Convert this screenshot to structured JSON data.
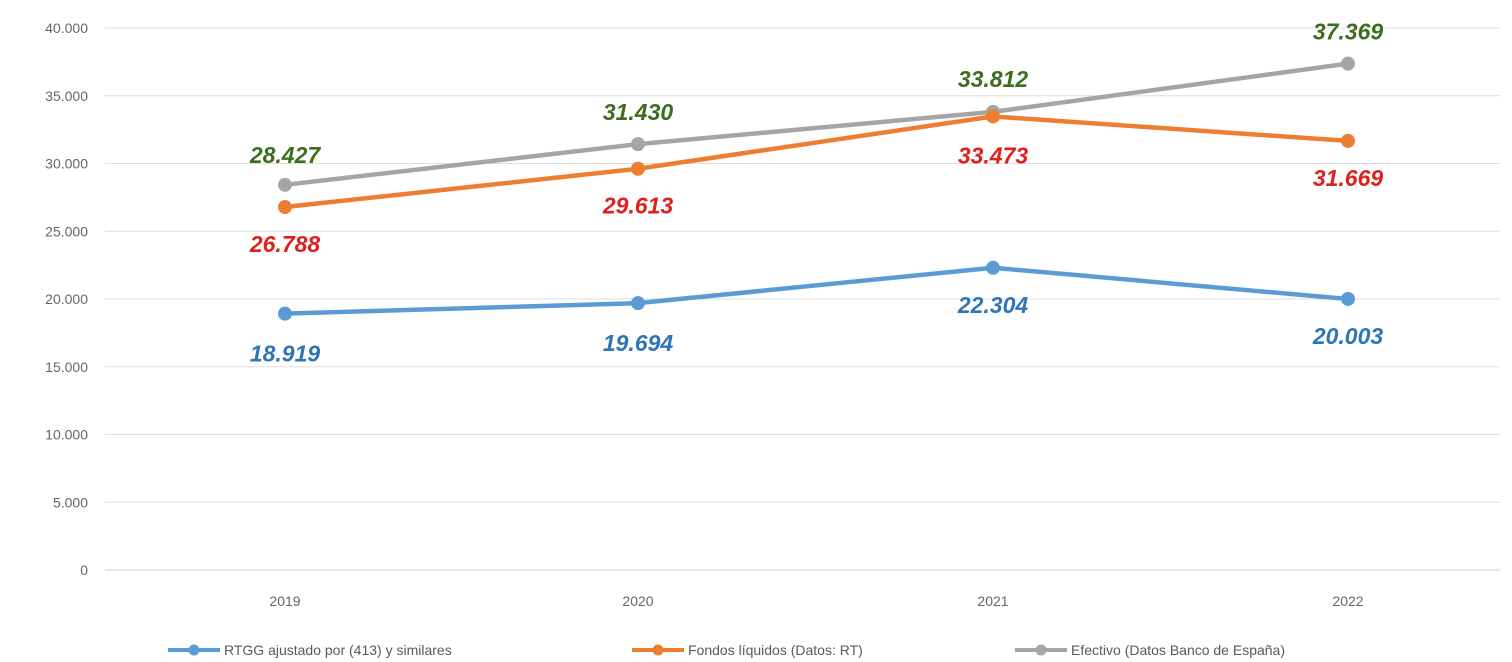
{
  "chart_data": {
    "type": "line",
    "title": "",
    "xlabel": "",
    "ylabel": "",
    "categories": [
      "2019",
      "2020",
      "2021",
      "2022"
    ],
    "ylim": [
      0,
      40000
    ],
    "yticks": [
      0,
      5000,
      10000,
      15000,
      20000,
      25000,
      30000,
      35000,
      40000
    ],
    "ytick_labels": [
      "0",
      "5.000",
      "10.000",
      "15.000",
      "20.000",
      "25.000",
      "30.000",
      "35.000",
      "40.000"
    ],
    "grid": true,
    "legend_position": "bottom",
    "series": [
      {
        "name": "RTGG ajustado por (413) y similares",
        "color": "#5b9bd5",
        "label_color": "#2e75b6",
        "values": [
          18919,
          19694,
          22304,
          20003
        ],
        "labels": [
          "18.919",
          "19.694",
          "22.304",
          "20.003"
        ]
      },
      {
        "name": "Fondos líquidos (Datos: RT)",
        "color": "#ed7d31",
        "label_color": "#e0201b",
        "values": [
          26788,
          29613,
          33473,
          31669
        ],
        "labels": [
          "26.788",
          "29.613",
          "33.473",
          "31.669"
        ]
      },
      {
        "name": "Efectivo (Datos Banco de España)",
        "color": "#a5a5a5",
        "label_color": "#3c6e1e",
        "values": [
          28427,
          31430,
          33812,
          37369
        ],
        "labels": [
          "28.427",
          "31.430",
          "33.812",
          "37.369"
        ]
      }
    ]
  }
}
